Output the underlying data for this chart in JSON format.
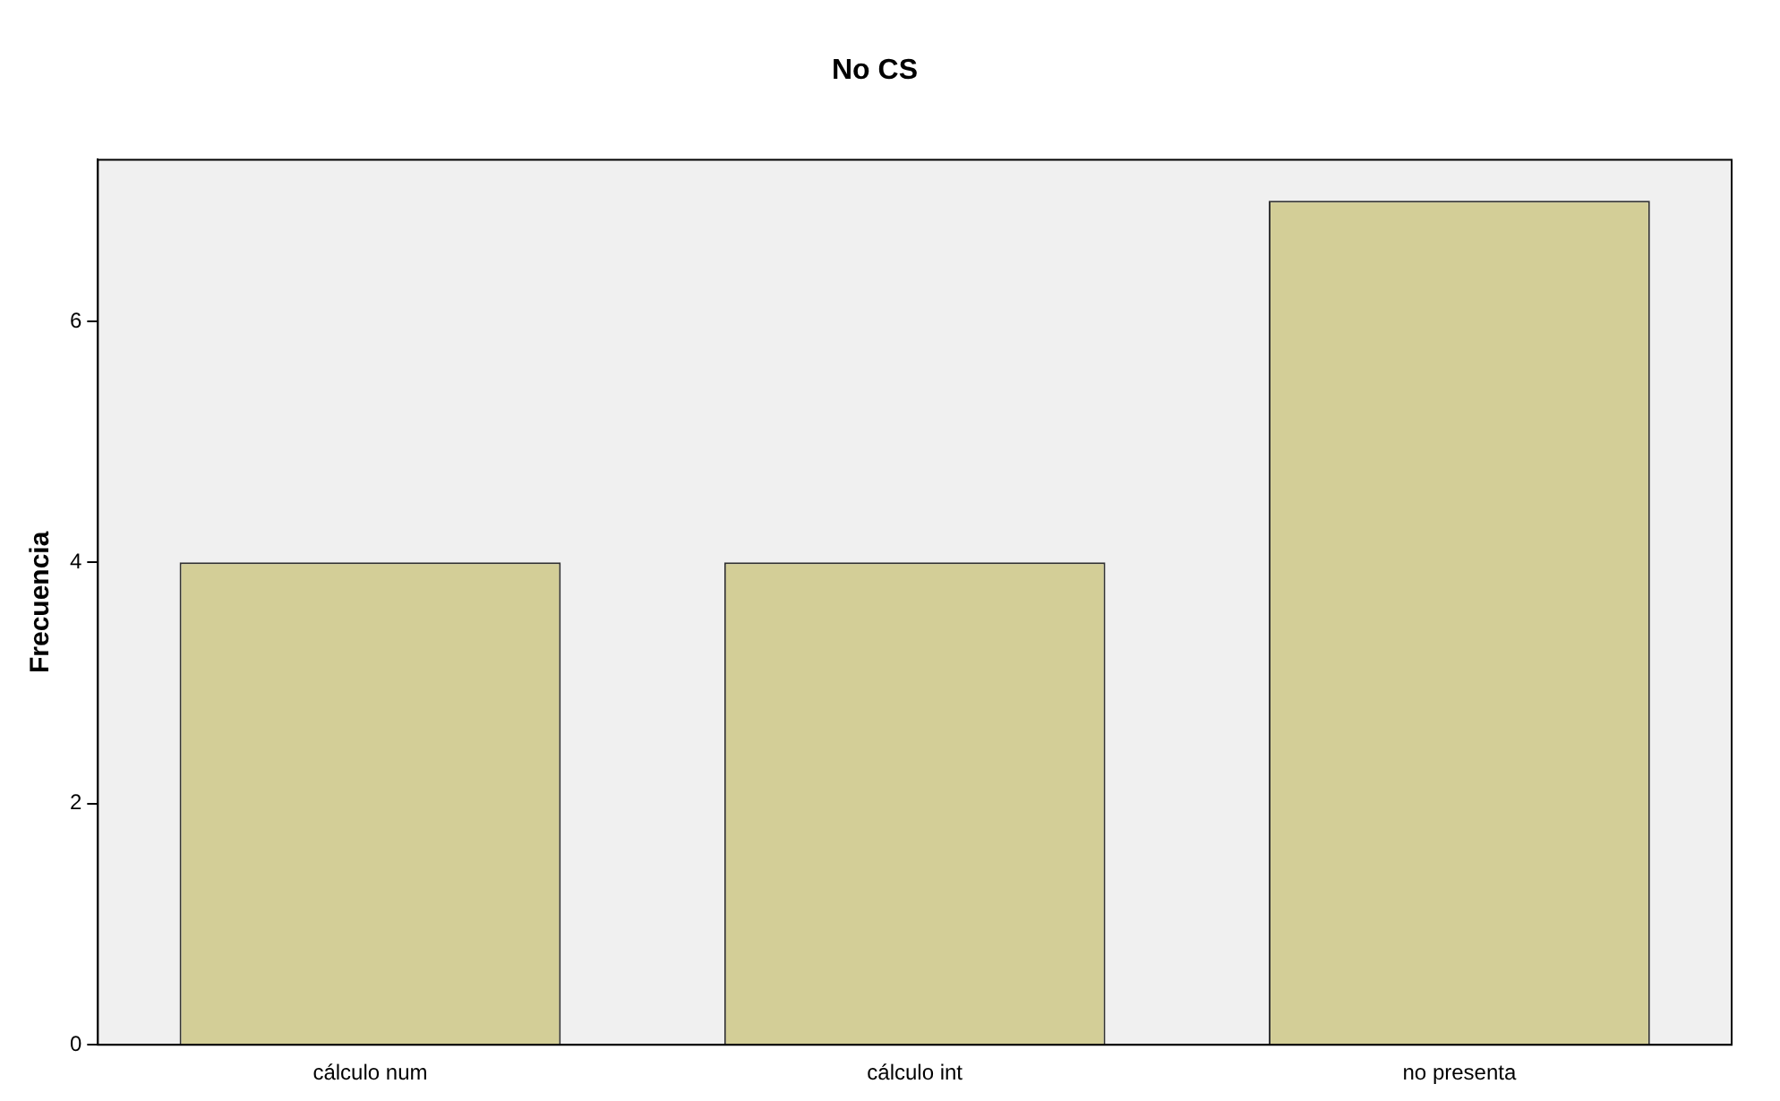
{
  "chart_data": {
    "type": "bar",
    "title": "No CS",
    "ylabel": "Frecuencia",
    "categories": [
      "cálculo num",
      "cálculo int",
      "no presenta"
    ],
    "values": [
      4,
      4,
      7
    ],
    "color": "#d3ce97",
    "ylim": [
      0,
      7.34
    ],
    "yticks": [
      0,
      2,
      4,
      6
    ],
    "grid": false,
    "legend": false
  }
}
